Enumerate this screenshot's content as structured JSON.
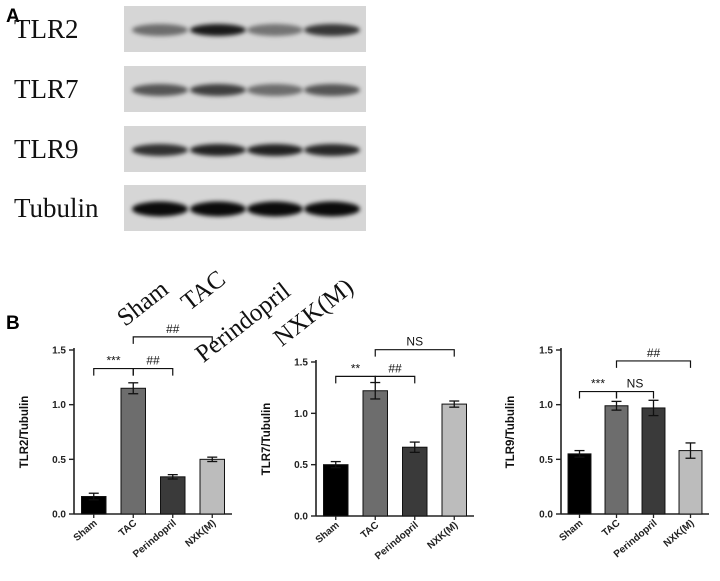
{
  "panel_a_label": "A",
  "panel_b_label": "B",
  "blot": {
    "rows": [
      {
        "label": "TLR2",
        "intensity": [
          0.35,
          0.9,
          0.3,
          0.7
        ]
      },
      {
        "label": "TLR7",
        "intensity": [
          0.5,
          0.65,
          0.35,
          0.5
        ]
      },
      {
        "label": "TLR9",
        "intensity": [
          0.75,
          0.85,
          0.85,
          0.8
        ]
      },
      {
        "label": "Tubulin",
        "intensity": [
          1.0,
          1.0,
          1.0,
          1.0
        ]
      }
    ],
    "lanes": [
      "Sham",
      "TAC",
      "Perindopril",
      "NXK(M)"
    ]
  },
  "chart_data": [
    {
      "type": "bar",
      "categories": [
        "Sham",
        "TAC",
        "Perindopril",
        "NXK(M)"
      ],
      "values": [
        0.16,
        1.15,
        0.34,
        0.5
      ],
      "errors": [
        0.03,
        0.05,
        0.02,
        0.02
      ],
      "ylabel": "TLR2/Tubulin",
      "ylim": [
        0,
        1.5
      ],
      "yticks": [
        "0.0",
        "0.5",
        "1.0",
        "1.5"
      ],
      "bar_colors": [
        "#000000",
        "#6d6d6d",
        "#3a3a3a",
        "#bcbcbc"
      ],
      "annotations": [
        {
          "from": 0,
          "to": 1,
          "text": "***",
          "y": 1.33
        },
        {
          "from": 1,
          "to": 2,
          "text": "##",
          "y": 1.33
        },
        {
          "from": 1,
          "to": 3,
          "text": "##",
          "y": 1.62
        }
      ]
    },
    {
      "type": "bar",
      "categories": [
        "Sham",
        "TAC",
        "Perindopril",
        "NXK(M)"
      ],
      "values": [
        0.5,
        1.22,
        0.67,
        1.09
      ],
      "errors": [
        0.03,
        0.08,
        0.05,
        0.03
      ],
      "ylabel": "TLR7/Tubulin",
      "ylim": [
        0,
        1.5
      ],
      "yticks": [
        "0.0",
        "0.5",
        "1.0",
        "1.5"
      ],
      "bar_colors": [
        "#000000",
        "#6d6d6d",
        "#3a3a3a",
        "#bcbcbc"
      ],
      "annotations": [
        {
          "from": 0,
          "to": 1,
          "text": "**",
          "y": 1.36
        },
        {
          "from": 1,
          "to": 2,
          "text": "##",
          "y": 1.36
        },
        {
          "from": 1,
          "to": 3,
          "text": "NS",
          "y": 1.62
        }
      ]
    },
    {
      "type": "bar",
      "categories": [
        "Sham",
        "TAC",
        "Perindopril",
        "NXK(M)"
      ],
      "values": [
        0.55,
        0.99,
        0.97,
        0.58
      ],
      "errors": [
        0.03,
        0.04,
        0.07,
        0.07
      ],
      "ylabel": "TLR9/Tubulin",
      "ylim": [
        0,
        1.5
      ],
      "yticks": [
        "0.0",
        "0.5",
        "1.0",
        "1.5"
      ],
      "bar_colors": [
        "#000000",
        "#6d6d6d",
        "#3a3a3a",
        "#bcbcbc"
      ],
      "annotations": [
        {
          "from": 0,
          "to": 1,
          "text": "***",
          "y": 1.12
        },
        {
          "from": 1,
          "to": 2,
          "text": "NS",
          "y": 1.12
        },
        {
          "from": 1,
          "to": 3,
          "text": "##",
          "y": 1.4
        }
      ]
    }
  ]
}
